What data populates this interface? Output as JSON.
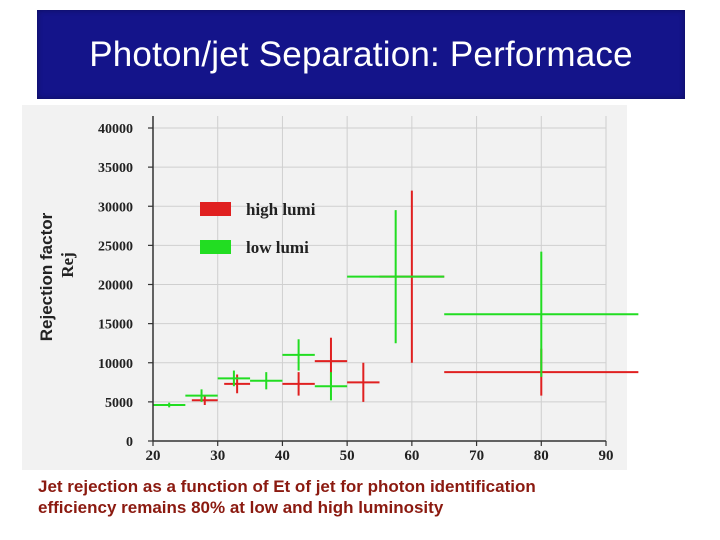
{
  "slide": {
    "title": "Photon/jet Separation: Performace",
    "caption_line1": "Jet rejection as a function of Et of jet for photon identification",
    "caption_line2": "efficiency remains 80% at low and high luminosity"
  },
  "chart_data": {
    "type": "scatter",
    "title": "",
    "xlabel": "",
    "ylabel_main": "Rejection factor",
    "ylabel_secondary": "Rej",
    "xlim": [
      20,
      90
    ],
    "ylim": [
      0,
      40000
    ],
    "x_ticks": [
      20,
      30,
      40,
      50,
      60,
      70,
      80,
      90
    ],
    "y_ticks": [
      0,
      5000,
      10000,
      15000,
      20000,
      25000,
      30000,
      35000,
      40000
    ],
    "y_tick_labels": [
      "0",
      "5000",
      "10000",
      "15000",
      "20000",
      "25000",
      "30000",
      "35000",
      "40000"
    ],
    "grid": true,
    "legend_position": "top-left",
    "series": [
      {
        "name": "high lumi",
        "color": "#e02020",
        "points": [
          {
            "x": 28,
            "xerr": 2,
            "y": 5200,
            "yerr": 600
          },
          {
            "x": 33,
            "xerr": 2,
            "y": 7300,
            "yerr": 1200
          },
          {
            "x": 42.5,
            "xerr": 2.5,
            "y": 7300,
            "yerr": 1500
          },
          {
            "x": 47.5,
            "xerr": 2.5,
            "y": 10200,
            "yerr": 3000
          },
          {
            "x": 52.5,
            "xerr": 2.5,
            "y": 7500,
            "yerr": 2500
          },
          {
            "x": 60,
            "xerr": 5,
            "y": 21000,
            "yerr": 11000
          },
          {
            "x": 80,
            "xerr": 15,
            "y": 8800,
            "yerr": 3000
          }
        ]
      },
      {
        "name": "low lumi",
        "color": "#22dd22",
        "points": [
          {
            "x": 22.5,
            "xerr": 2.5,
            "y": 4600,
            "yerr": 300
          },
          {
            "x": 27.5,
            "xerr": 2.5,
            "y": 5800,
            "yerr": 800
          },
          {
            "x": 32.5,
            "xerr": 2.5,
            "y": 8000,
            "yerr": 1000
          },
          {
            "x": 37.5,
            "xerr": 2.5,
            "y": 7700,
            "yerr": 1100
          },
          {
            "x": 42.5,
            "xerr": 2.5,
            "y": 11000,
            "yerr": 2000
          },
          {
            "x": 47.5,
            "xerr": 2.5,
            "y": 7000,
            "yerr": 1800
          },
          {
            "x": 57.5,
            "xerr": 7.5,
            "y": 21000,
            "yerr": 8500
          },
          {
            "x": 80,
            "xerr": 15,
            "y": 16200,
            "yerr": 8000
          }
        ]
      }
    ]
  }
}
